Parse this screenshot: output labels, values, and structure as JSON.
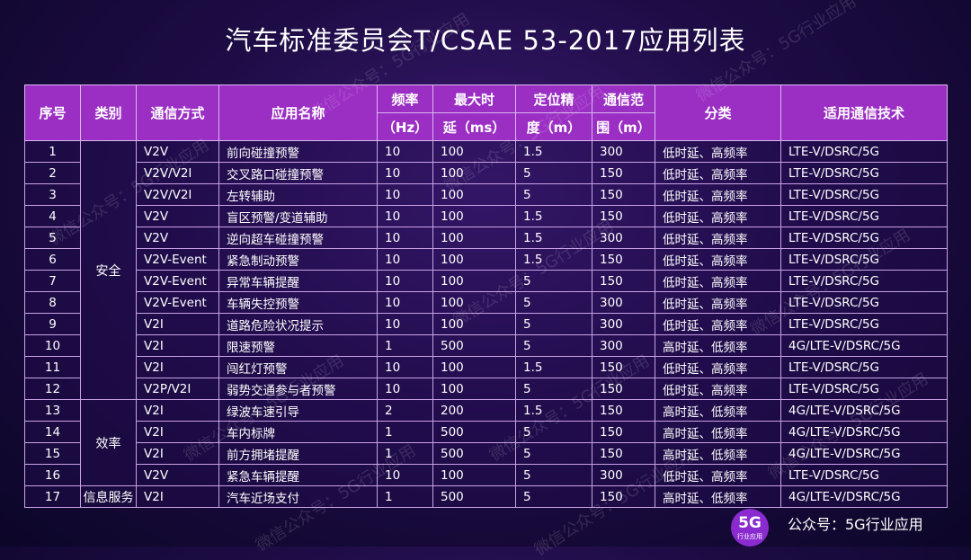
{
  "title": "汽车标准委员会T/CSAE 53-2017应用列表",
  "header": {
    "no": "序号",
    "category": "类别",
    "comm_mode": "通信方式",
    "app_name": "应用名称",
    "freq_l1": "频率",
    "freq_l2": "（Hz）",
    "latency_l1": "最大时",
    "latency_l2": "延（ms）",
    "accuracy_l1": "定位精",
    "accuracy_l2": "度（m）",
    "range_l1": "通信范",
    "range_l2": "围（m）",
    "class": "分类",
    "tech": "适用通信技术"
  },
  "categories": {
    "safety": "安全",
    "efficiency": "效率",
    "info": "信息服务"
  },
  "rows": [
    {
      "no": "1",
      "mode": "V2V",
      "name": "前向碰撞预警",
      "freq": "10",
      "latency": "100",
      "acc": "1.5",
      "range": "300",
      "class": "低时延、高频率",
      "tech": "LTE-V/DSRC/5G"
    },
    {
      "no": "2",
      "mode": "V2V/V2I",
      "name": "交叉路口碰撞预警",
      "freq": "10",
      "latency": "100",
      "acc": "5",
      "range": "150",
      "class": "低时延、高频率",
      "tech": "LTE-V/DSRC/5G"
    },
    {
      "no": "3",
      "mode": "V2V/V2I",
      "name": "左转辅助",
      "freq": "10",
      "latency": "100",
      "acc": "5",
      "range": "150",
      "class": "低时延、高频率",
      "tech": "LTE-V/DSRC/5G"
    },
    {
      "no": "4",
      "mode": "V2V",
      "name": "盲区预警/变道辅助",
      "freq": "10",
      "latency": "100",
      "acc": "1.5",
      "range": "150",
      "class": "低时延、高频率",
      "tech": "LTE-V/DSRC/5G"
    },
    {
      "no": "5",
      "mode": "V2V",
      "name": "逆向超车碰撞预警",
      "freq": "10",
      "latency": "100",
      "acc": "1.5",
      "range": "300",
      "class": "低时延、高频率",
      "tech": "LTE-V/DSRC/5G"
    },
    {
      "no": "6",
      "mode": "V2V-Event",
      "name": "紧急制动预警",
      "freq": "10",
      "latency": "100",
      "acc": "1.5",
      "range": "150",
      "class": "低时延、高频率",
      "tech": "LTE-V/DSRC/5G"
    },
    {
      "no": "7",
      "mode": "V2V-Event",
      "name": "异常车辆提醒",
      "freq": "10",
      "latency": "100",
      "acc": "5",
      "range": "150",
      "class": "低时延、高频率",
      "tech": "LTE-V/DSRC/5G"
    },
    {
      "no": "8",
      "mode": "V2V-Event",
      "name": "车辆失控预警",
      "freq": "10",
      "latency": "100",
      "acc": "5",
      "range": "300",
      "class": "低时延、高频率",
      "tech": "LTE-V/DSRC/5G"
    },
    {
      "no": "9",
      "mode": "V2I",
      "name": "道路危险状况提示",
      "freq": "10",
      "latency": "100",
      "acc": "5",
      "range": "300",
      "class": "低时延、高频率",
      "tech": "LTE-V/DSRC/5G"
    },
    {
      "no": "10",
      "mode": "V2I",
      "name": "限速预警",
      "freq": "1",
      "latency": "500",
      "acc": "5",
      "range": "300",
      "class": "高时延、低频率",
      "tech": "4G/LTE-V/DSRC/5G"
    },
    {
      "no": "11",
      "mode": "V2I",
      "name": "闯红灯预警",
      "freq": "10",
      "latency": "100",
      "acc": "1.5",
      "range": "150",
      "class": "低时延、高频率",
      "tech": "LTE-V/DSRC/5G"
    },
    {
      "no": "12",
      "mode": "V2P/V2I",
      "name": "弱势交通参与者预警",
      "freq": "10",
      "latency": "100",
      "acc": "5",
      "range": "150",
      "class": "低时延、高频率",
      "tech": "LTE-V/DSRC/5G"
    },
    {
      "no": "13",
      "mode": "V2I",
      "name": "绿波车速引导",
      "freq": "2",
      "latency": "200",
      "acc": "1.5",
      "range": "150",
      "class": "高时延、低频率",
      "tech": "4G/LTE-V/DSRC/5G"
    },
    {
      "no": "14",
      "mode": "V2I",
      "name": "车内标牌",
      "freq": "1",
      "latency": "500",
      "acc": "5",
      "range": "150",
      "class": "高时延、低频率",
      "tech": "4G/LTE-V/DSRC/5G"
    },
    {
      "no": "15",
      "mode": "V2I",
      "name": "前方拥堵提醒",
      "freq": "1",
      "latency": "500",
      "acc": "5",
      "range": "150",
      "class": "高时延、低频率",
      "tech": "4G/LTE-V/DSRC/5G"
    },
    {
      "no": "16",
      "mode": "V2V",
      "name": "紧急车辆提醒",
      "freq": "10",
      "latency": "100",
      "acc": "5",
      "range": "300",
      "class": "低时延、高频率",
      "tech": "LTE-V/DSRC/5G"
    },
    {
      "no": "17",
      "mode": "V2I",
      "name": "汽车近场支付",
      "freq": "1",
      "latency": "500",
      "acc": "5",
      "range": "150",
      "class": "高时延、低频率",
      "tech": "4G/LTE-V/DSRC/5G"
    }
  ],
  "watermark": "微信公众号：5G行业应用",
  "footer": {
    "logo_big": "5G",
    "logo_small": "行业应用",
    "account": "公众号：5G行业应用"
  }
}
